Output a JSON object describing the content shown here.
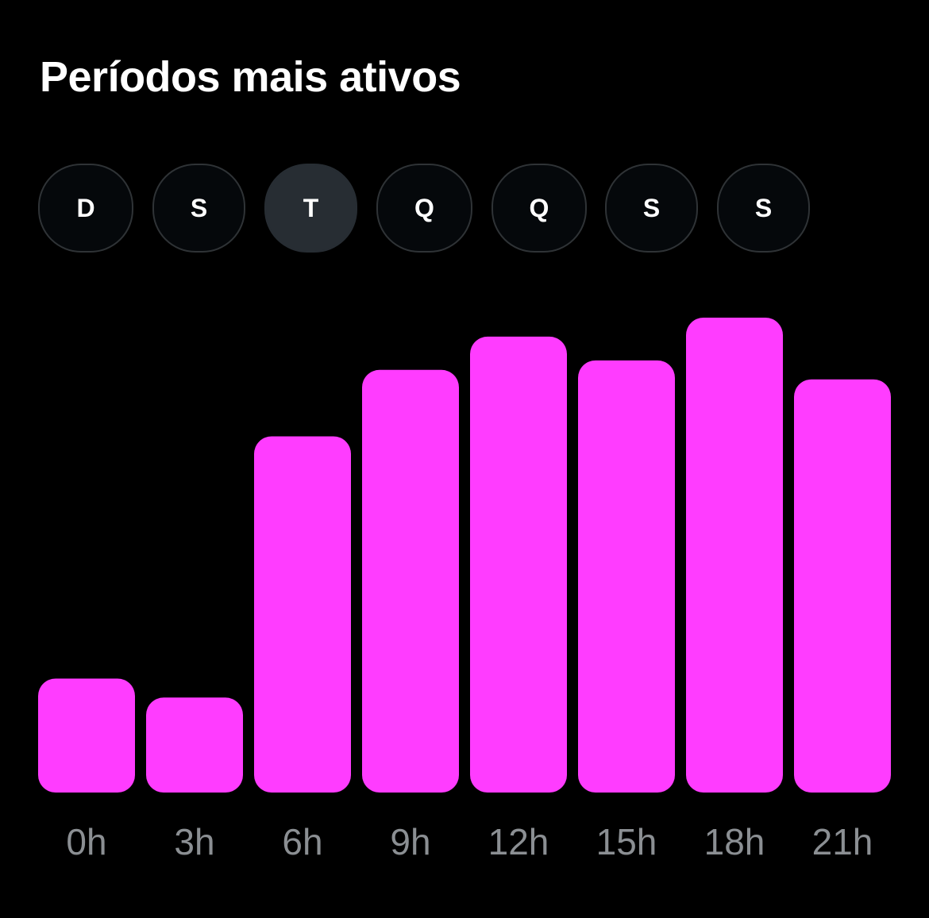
{
  "title": "Períodos mais ativos",
  "days": [
    {
      "label": "D",
      "selected": false
    },
    {
      "label": "S",
      "selected": false
    },
    {
      "label": "T",
      "selected": true
    },
    {
      "label": "Q",
      "selected": false
    },
    {
      "label": "Q",
      "selected": false
    },
    {
      "label": "S",
      "selected": false
    },
    {
      "label": "S",
      "selected": false
    }
  ],
  "colors": {
    "bar": "#ff3cff",
    "axis_label": "#8b8f93",
    "pill_border": "#2f3336",
    "pill_selected": "#272d33"
  },
  "chart_data": {
    "type": "bar",
    "title": "Períodos mais ativos",
    "categories": [
      "0h",
      "3h",
      "6h",
      "9h",
      "12h",
      "15h",
      "18h",
      "21h"
    ],
    "values": [
      24,
      20,
      75,
      89,
      96,
      91,
      100,
      87
    ],
    "ylim": [
      0,
      100
    ],
    "grid": false,
    "legend": "none"
  }
}
